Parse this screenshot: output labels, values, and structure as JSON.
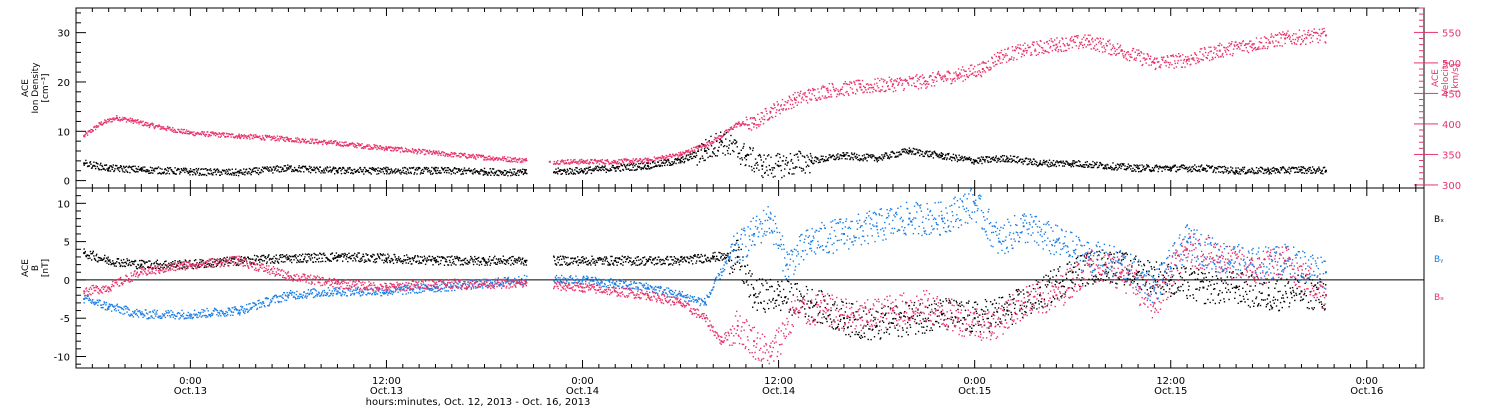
{
  "colors": {
    "black": "#000000",
    "red": "#e8336b",
    "blue": "#1a7ee6"
  },
  "x_axis": {
    "title": "hours:minutes, Oct. 12, 2013 - Oct. 16, 2013",
    "unit": "hours since 2013-10-12 00:00",
    "range": [
      17.0,
      99.5
    ],
    "ticks": [
      {
        "hours": 24,
        "time": "0:00",
        "date": "Oct.13"
      },
      {
        "hours": 36,
        "time": "12:00",
        "date": "Oct.13"
      },
      {
        "hours": 48,
        "time": "0:00",
        "date": "Oct.14"
      },
      {
        "hours": 60,
        "time": "12:00",
        "date": "Oct.14"
      },
      {
        "hours": 72,
        "time": "0:00",
        "date": "Oct.15"
      },
      {
        "hours": 84,
        "time": "12:00",
        "date": "Oct.15"
      },
      {
        "hours": 96,
        "time": "0:00",
        "date": "Oct.16"
      }
    ]
  },
  "chart_data": [
    {
      "type": "scatter",
      "panel": "plasma",
      "left_axis": {
        "label_lines": [
          "ACE",
          "Ion Density",
          "[cm⁻³]"
        ],
        "range": [
          -1.5,
          35
        ],
        "ticks": [
          "0",
          "10",
          "20",
          "30"
        ],
        "tick_values": [
          0,
          10,
          20,
          30
        ]
      },
      "right_axis": {
        "label_lines": [
          "ACE",
          "Velocity",
          "[km/s]"
        ],
        "range": [
          295,
          590
        ],
        "ticks": [
          "300",
          "350",
          "400",
          "450",
          "500",
          "550"
        ],
        "tick_values": [
          300,
          350,
          400,
          450,
          500,
          550
        ]
      },
      "series": [
        {
          "name": "",
          "color_key": "black",
          "axis": "left",
          "x": [
            17.5,
            19,
            21,
            24,
            27,
            30,
            33,
            36,
            39,
            42,
            44.5,
            48,
            50,
            52,
            54,
            55.5,
            56.5,
            58,
            59,
            60,
            62,
            64,
            66,
            68,
            70,
            72,
            74,
            76,
            78,
            80,
            82,
            84,
            86,
            88,
            90,
            92,
            93.5
          ],
          "y": [
            3.5,
            2.5,
            2.2,
            1.8,
            1.6,
            2.5,
            2.0,
            2.0,
            2.0,
            1.8,
            1.6,
            2.0,
            2.5,
            3.0,
            4.0,
            6.0,
            8.0,
            5.0,
            3.0,
            3.0,
            4.0,
            5.0,
            4.5,
            6.0,
            5.0,
            4.0,
            4.5,
            3.5,
            3.5,
            3.0,
            2.5,
            2.5,
            2.5,
            2.0,
            2.0,
            2.2,
            2.0
          ]
        },
        {
          "name": "",
          "color_key": "red",
          "axis": "right",
          "x": [
            17.5,
            18.5,
            19.5,
            20.5,
            21.5,
            24,
            27,
            30,
            33,
            36,
            39,
            42,
            44.5,
            46,
            48,
            50,
            52,
            54,
            55.5,
            56.5,
            57.5,
            58.5,
            59.5,
            61,
            63,
            65,
            67,
            69,
            71,
            72.5,
            73.5,
            75,
            77,
            79,
            81,
            83,
            85,
            87,
            89,
            91,
            93.5
          ],
          "y": [
            380,
            400,
            410,
            405,
            398,
            385,
            380,
            375,
            368,
            360,
            352,
            345,
            340,
            338,
            338,
            338,
            340,
            350,
            365,
            380,
            400,
            400,
            420,
            440,
            455,
            460,
            465,
            470,
            480,
            490,
            510,
            520,
            530,
            535,
            520,
            500,
            505,
            520,
            530,
            540,
            545
          ]
        }
      ]
    },
    {
      "type": "scatter",
      "panel": "magnetic field",
      "left_axis": {
        "label_lines": [
          "ACE",
          "B",
          "[nT]"
        ],
        "range": [
          -11.5,
          12
        ],
        "ticks": [
          "-10",
          "-5",
          "0",
          "5",
          "10"
        ],
        "tick_values": [
          -10,
          -5,
          0,
          5,
          10
        ]
      },
      "series": [
        {
          "name": "Bₓ",
          "color_key": "black",
          "x": [
            17.5,
            19,
            21,
            24,
            27,
            30,
            33,
            36,
            39,
            42,
            44.5,
            48,
            50,
            52,
            54,
            56,
            57.5,
            58.5,
            60,
            62,
            64,
            66,
            68,
            70,
            72,
            74,
            76,
            78,
            80,
            82,
            84,
            86,
            88,
            90,
            92,
            93.5
          ],
          "y": [
            3.5,
            2.5,
            2.0,
            2.0,
            2.5,
            2.8,
            3.0,
            2.8,
            2.5,
            2.5,
            2.5,
            2.5,
            2.5,
            2.5,
            2.5,
            3.0,
            3.0,
            -2.0,
            -2.0,
            -3.0,
            -5.0,
            -6.0,
            -5.0,
            -4.5,
            -5.0,
            -4.0,
            -2.0,
            1.0,
            2.0,
            1.0,
            0.0,
            -1.0,
            -1.0,
            -2.0,
            -1.5,
            -2.0
          ]
        },
        {
          "name": "Bᵧ",
          "color_key": "blue",
          "x": [
            17.5,
            19,
            21,
            24,
            27,
            30,
            33,
            36,
            39,
            42,
            44.5,
            48,
            50,
            52,
            54,
            55.5,
            57,
            58.5,
            59.5,
            60.5,
            62,
            64,
            66,
            68,
            70,
            72,
            73.5,
            75,
            77,
            79,
            81,
            83,
            85,
            87,
            89,
            91,
            93.5
          ],
          "y": [
            -2.5,
            -3.5,
            -4.5,
            -4.5,
            -4.0,
            -2.0,
            -1.5,
            -1.5,
            -1.0,
            -0.5,
            0.0,
            0.0,
            -0.5,
            -1.0,
            -2.0,
            -3.0,
            3.0,
            6.0,
            8.0,
            2.0,
            5.0,
            6.0,
            7.0,
            8.0,
            8.0,
            10.0,
            5.0,
            7.0,
            5.0,
            3.0,
            2.0,
            -1.0,
            5.0,
            3.0,
            2.0,
            2.5,
            1.0
          ]
        },
        {
          "name": "Bₔ",
          "color_key": "red",
          "x": [
            17.5,
            19,
            21,
            24,
            27,
            30,
            33,
            36,
            39,
            42,
            44.5,
            48,
            50,
            52,
            54,
            55.5,
            56.5,
            57.5,
            58.5,
            59.5,
            61,
            63,
            65,
            67,
            69,
            71,
            73,
            75,
            77,
            79,
            81,
            83,
            85,
            87,
            89,
            91,
            93.5
          ],
          "y": [
            -1.5,
            -1.0,
            1.0,
            2.0,
            2.5,
            0.5,
            -0.5,
            -1.0,
            -0.5,
            -0.5,
            -0.5,
            -1.0,
            -1.5,
            -2.0,
            -3.0,
            -5.0,
            -8.0,
            -6.0,
            -8.0,
            -10.0,
            -4.0,
            -4.0,
            -5.0,
            -4.0,
            -3.5,
            -5.0,
            -6.0,
            -3.0,
            -2.0,
            2.0,
            1.0,
            -3.0,
            4.0,
            3.0,
            1.0,
            2.5,
            -2.0
          ]
        }
      ]
    }
  ]
}
